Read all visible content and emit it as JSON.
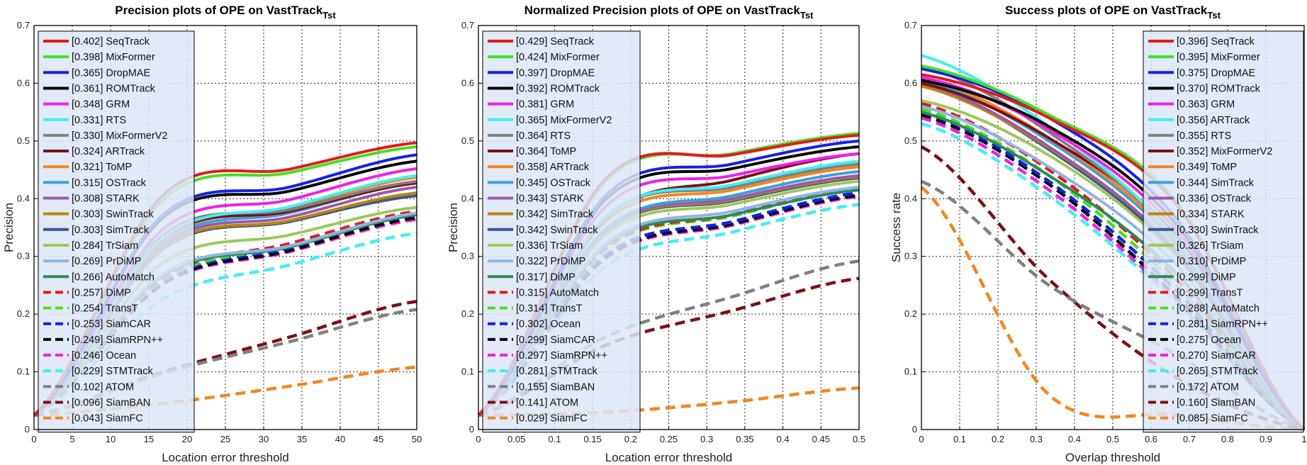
{
  "chart_data": [
    {
      "type": "line",
      "title": "Precision plots of OPE on VastTrack",
      "title_sub": "Tst",
      "xlabel": "Location error threshold",
      "ylabel": "Precision",
      "xlim": [
        0,
        50
      ],
      "ylim": [
        0,
        0.7
      ],
      "xticks": [
        "0",
        "5",
        "10",
        "15",
        "20",
        "25",
        "30",
        "35",
        "40",
        "45",
        "50"
      ],
      "yticks": [
        "0",
        "0.1",
        "0.2",
        "0.3",
        "0.4",
        "0.5",
        "0.6",
        "0.7"
      ],
      "grid": true,
      "legend_position": "top-left",
      "series": [
        {
          "name": "[0.402] SeqTrack",
          "color": "#e41a1c",
          "dash": false,
          "values": [
            0.025,
            0.404,
            0.451,
            0.497
          ]
        },
        {
          "name": "[0.398] MixFormer",
          "color": "#44e01f",
          "dash": false,
          "values": [
            0.025,
            0.396,
            0.445,
            0.49
          ]
        },
        {
          "name": "[0.365] DropMAE",
          "color": "#1520e8",
          "dash": false,
          "values": [
            0.025,
            0.37,
            0.42,
            0.476
          ]
        },
        {
          "name": "[0.361] ROMTrack",
          "color": "#000000",
          "dash": false,
          "values": [
            0.025,
            0.365,
            0.413,
            0.465
          ]
        },
        {
          "name": "[0.348] GRM",
          "color": "#f21ee8",
          "dash": false,
          "values": [
            0.025,
            0.345,
            0.398,
            0.452
          ]
        },
        {
          "name": "[0.331] RTS",
          "color": "#41f0f0",
          "dash": false,
          "values": [
            0.025,
            0.33,
            0.386,
            0.44
          ]
        },
        {
          "name": "[0.330] MixFormerV2",
          "color": "#808080",
          "dash": false,
          "values": [
            0.025,
            0.335,
            0.381,
            0.43
          ]
        },
        {
          "name": "[0.324] ARTrack",
          "color": "#7d1015",
          "dash": false,
          "values": [
            0.025,
            0.329,
            0.378,
            0.427
          ]
        },
        {
          "name": "[0.321] ToMP",
          "color": "#f5851f",
          "dash": false,
          "values": [
            0.025,
            0.326,
            0.383,
            0.437
          ]
        },
        {
          "name": "[0.315] OSTrack",
          "color": "#3e9fdc",
          "dash": false,
          "values": [
            0.025,
            0.322,
            0.375,
            0.428
          ]
        },
        {
          "name": "[0.308] STARK",
          "color": "#9a5aa8",
          "dash": false,
          "values": [
            0.025,
            0.318,
            0.368,
            0.42
          ]
        },
        {
          "name": "[0.303] SwinTrack",
          "color": "#b8860b",
          "dash": false,
          "values": [
            0.025,
            0.313,
            0.362,
            0.41
          ]
        },
        {
          "name": "[0.303] SimTrack",
          "color": "#3a5595",
          "dash": false,
          "values": [
            0.025,
            0.311,
            0.36,
            0.405
          ]
        },
        {
          "name": "[0.284] TrSiam",
          "color": "#9bc95a",
          "dash": false,
          "values": [
            0.025,
            0.287,
            0.337,
            0.385
          ]
        },
        {
          "name": "[0.269] PrDiMP",
          "color": "#8fb4e8",
          "dash": false,
          "values": [
            0.025,
            0.268,
            0.318,
            0.375
          ]
        },
        {
          "name": "[0.266] AutoMatch",
          "color": "#2e8b57",
          "dash": false,
          "values": [
            0.025,
            0.265,
            0.316,
            0.372
          ]
        },
        {
          "name": "[0.257] DiMP",
          "color": "#e41a1c",
          "dash": true,
          "values": [
            0.025,
            0.262,
            0.322,
            0.378
          ]
        },
        {
          "name": "[0.254] TransT",
          "color": "#44e01f",
          "dash": true,
          "values": [
            0.025,
            0.258,
            0.318,
            0.375
          ]
        },
        {
          "name": "[0.253] SiamCAR",
          "color": "#1520e8",
          "dash": true,
          "values": [
            0.025,
            0.255,
            0.315,
            0.372
          ]
        },
        {
          "name": "[0.249] SiamRPN++",
          "color": "#000000",
          "dash": true,
          "values": [
            0.025,
            0.252,
            0.31,
            0.367
          ]
        },
        {
          "name": "[0.246] Ocean",
          "color": "#f21ee8",
          "dash": true,
          "values": [
            0.025,
            0.25,
            0.308,
            0.364
          ]
        },
        {
          "name": "[0.229] STMTrack",
          "color": "#41f0f0",
          "dash": true,
          "values": [
            0.025,
            0.225,
            0.285,
            0.34
          ]
        },
        {
          "name": "[0.102] ATOM",
          "color": "#808080",
          "dash": true,
          "values": [
            0.025,
            0.097,
            0.152,
            0.208
          ]
        },
        {
          "name": "[0.096] SiamBAN",
          "color": "#7d1015",
          "dash": true,
          "values": [
            0.025,
            0.099,
            0.16,
            0.222
          ]
        },
        {
          "name": "[0.043] SiamFC",
          "color": "#f5851f",
          "dash": true,
          "values": [
            0.025,
            0.045,
            0.075,
            0.108
          ]
        }
      ]
    },
    {
      "type": "line",
      "title": "Normalized Precision plots of OPE on VastTrack",
      "title_sub": "Tst",
      "xlabel": "Location error threshold",
      "ylabel": "Precision",
      "xlim": [
        0,
        0.5
      ],
      "ylim": [
        0,
        0.7
      ],
      "xticks": [
        "0",
        "0.05",
        "0.1",
        "0.15",
        "0.2",
        "0.25",
        "0.3",
        "0.35",
        "0.4",
        "0.45",
        "0.5"
      ],
      "yticks": [
        "0",
        "0.1",
        "0.2",
        "0.3",
        "0.4",
        "0.5",
        "0.6",
        "0.7"
      ],
      "grid": true,
      "legend_position": "top-left",
      "series": [
        {
          "name": "[0.429] SeqTrack",
          "color": "#e41a1c",
          "dash": false,
          "values": [
            0.025,
            0.434,
            0.476,
            0.51
          ]
        },
        {
          "name": "[0.424] MixFormer",
          "color": "#44e01f",
          "dash": false,
          "values": [
            0.025,
            0.43,
            0.478,
            0.513
          ]
        },
        {
          "name": "[0.397] DropMAE",
          "color": "#1520e8",
          "dash": false,
          "values": [
            0.025,
            0.405,
            0.46,
            0.5
          ]
        },
        {
          "name": "[0.392] ROMTrack",
          "color": "#000000",
          "dash": false,
          "values": [
            0.025,
            0.398,
            0.452,
            0.49
          ]
        },
        {
          "name": "[0.381] GRM",
          "color": "#f21ee8",
          "dash": false,
          "values": [
            0.025,
            0.386,
            0.44,
            0.478
          ]
        },
        {
          "name": "[0.365] MixFormerV2",
          "color": "#41f0f0",
          "dash": false,
          "values": [
            0.025,
            0.368,
            0.424,
            0.465
          ]
        },
        {
          "name": "[0.364] RTS",
          "color": "#808080",
          "dash": false,
          "values": [
            0.025,
            0.367,
            0.42,
            0.46
          ]
        },
        {
          "name": "[0.364] ToMP",
          "color": "#7d1015",
          "dash": false,
          "values": [
            0.025,
            0.366,
            0.432,
            0.478
          ]
        },
        {
          "name": "[0.358] ARTrack",
          "color": "#f5851f",
          "dash": false,
          "values": [
            0.025,
            0.36,
            0.415,
            0.455
          ]
        },
        {
          "name": "[0.345] OSTrack",
          "color": "#3e9fdc",
          "dash": false,
          "values": [
            0.025,
            0.347,
            0.405,
            0.447
          ]
        },
        {
          "name": "[0.343] STARK",
          "color": "#9a5aa8",
          "dash": false,
          "values": [
            0.025,
            0.345,
            0.4,
            0.44
          ]
        },
        {
          "name": "[0.342] SimTrack",
          "color": "#b8860b",
          "dash": false,
          "values": [
            0.025,
            0.343,
            0.398,
            0.438
          ]
        },
        {
          "name": "[0.342] SwinTrack",
          "color": "#3a5595",
          "dash": false,
          "values": [
            0.025,
            0.342,
            0.396,
            0.436
          ]
        },
        {
          "name": "[0.336] TrSiam",
          "color": "#9bc95a",
          "dash": false,
          "values": [
            0.025,
            0.336,
            0.39,
            0.43
          ]
        },
        {
          "name": "[0.322] PrDiMP",
          "color": "#8fb4e8",
          "dash": false,
          "values": [
            0.025,
            0.322,
            0.378,
            0.42
          ]
        },
        {
          "name": "[0.317] DiMP",
          "color": "#2e8b57",
          "dash": false,
          "values": [
            0.025,
            0.318,
            0.372,
            0.415
          ]
        },
        {
          "name": "[0.315] AutoMatch",
          "color": "#e41a1c",
          "dash": true,
          "values": [
            0.025,
            0.314,
            0.372,
            0.418
          ]
        },
        {
          "name": "[0.314] TransT",
          "color": "#44e01f",
          "dash": true,
          "values": [
            0.025,
            0.312,
            0.37,
            0.416
          ]
        },
        {
          "name": "[0.302] Ocean",
          "color": "#1520e8",
          "dash": true,
          "values": [
            0.025,
            0.302,
            0.36,
            0.41
          ]
        },
        {
          "name": "[0.299] SiamCAR",
          "color": "#000000",
          "dash": true,
          "values": [
            0.025,
            0.298,
            0.356,
            0.406
          ]
        },
        {
          "name": "[0.297] SiamRPN++",
          "color": "#f21ee8",
          "dash": true,
          "values": [
            0.025,
            0.296,
            0.354,
            0.404
          ]
        },
        {
          "name": "[0.281] STMTrack",
          "color": "#41f0f0",
          "dash": true,
          "values": [
            0.025,
            0.282,
            0.342,
            0.39
          ]
        },
        {
          "name": "[0.155] SiamBAN",
          "color": "#808080",
          "dash": true,
          "values": [
            0.025,
            0.16,
            0.23,
            0.292
          ]
        },
        {
          "name": "[0.141] ATOM",
          "color": "#7d1015",
          "dash": true,
          "values": [
            0.025,
            0.146,
            0.206,
            0.262
          ]
        },
        {
          "name": "[0.029] SiamFC",
          "color": "#f5851f",
          "dash": true,
          "values": [
            0.025,
            0.03,
            0.048,
            0.072
          ]
        }
      ]
    },
    {
      "type": "line",
      "title": "Success plots of OPE on VastTrack",
      "title_sub": "Tst",
      "xlabel": "Overlap threshold",
      "ylabel": "Success rate",
      "xlim": [
        0,
        1
      ],
      "ylim": [
        0,
        0.7
      ],
      "xticks": [
        "0",
        "0.1",
        "0.2",
        "0.3",
        "0.4",
        "0.5",
        "0.6",
        "0.7",
        "0.8",
        "0.9",
        "1"
      ],
      "yticks": [
        "0",
        "0.1",
        "0.2",
        "0.3",
        "0.4",
        "0.5",
        "0.6",
        "0.7"
      ],
      "grid": true,
      "legend_position": "top-right",
      "series": [
        {
          "name": "[0.396] SeqTrack",
          "color": "#e41a1c",
          "dash": false,
          "values": [
            0.615,
            0.54,
            0.39,
            0.0
          ]
        },
        {
          "name": "[0.395] MixFormer",
          "color": "#44e01f",
          "dash": false,
          "values": [
            0.63,
            0.545,
            0.395,
            0.0
          ]
        },
        {
          "name": "[0.375] DropMAE",
          "color": "#1520e8",
          "dash": false,
          "values": [
            0.625,
            0.54,
            0.365,
            0.0
          ]
        },
        {
          "name": "[0.370] ROMTrack",
          "color": "#000000",
          "dash": false,
          "values": [
            0.605,
            0.525,
            0.355,
            0.0
          ]
        },
        {
          "name": "[0.363] GRM",
          "color": "#f21ee8",
          "dash": false,
          "values": [
            0.61,
            0.52,
            0.345,
            0.0
          ]
        },
        {
          "name": "[0.356] ARTrack",
          "color": "#41f0f0",
          "dash": false,
          "values": [
            0.648,
            0.525,
            0.33,
            0.0
          ]
        },
        {
          "name": "[0.355] RTS",
          "color": "#808080",
          "dash": false,
          "values": [
            0.63,
            0.515,
            0.33,
            0.0
          ]
        },
        {
          "name": "[0.352] MixFormerV2",
          "color": "#7d1015",
          "dash": false,
          "values": [
            0.6,
            0.505,
            0.335,
            0.0
          ]
        },
        {
          "name": "[0.349] ToMP",
          "color": "#f5851f",
          "dash": false,
          "values": [
            0.61,
            0.505,
            0.325,
            0.0
          ]
        },
        {
          "name": "[0.344] SimTrack",
          "color": "#3e9fdc",
          "dash": false,
          "values": [
            0.605,
            0.5,
            0.32,
            0.0
          ]
        },
        {
          "name": "[0.336] OSTrack",
          "color": "#9a5aa8",
          "dash": false,
          "values": [
            0.6,
            0.49,
            0.31,
            0.0
          ]
        },
        {
          "name": "[0.334] STARK",
          "color": "#b8860b",
          "dash": false,
          "values": [
            0.595,
            0.488,
            0.31,
            0.0
          ]
        },
        {
          "name": "[0.330] SwinTrack",
          "color": "#3a5595",
          "dash": false,
          "values": [
            0.6,
            0.485,
            0.305,
            0.0
          ]
        },
        {
          "name": "[0.326] TrSiam",
          "color": "#9bc95a",
          "dash": false,
          "values": [
            0.57,
            0.475,
            0.3,
            0.0
          ]
        },
        {
          "name": "[0.310] PrDiMP",
          "color": "#8fb4e8",
          "dash": false,
          "values": [
            0.56,
            0.455,
            0.285,
            0.0
          ]
        },
        {
          "name": "[0.299] DiMP",
          "color": "#2e8b57",
          "dash": false,
          "values": [
            0.55,
            0.44,
            0.27,
            0.0
          ]
        },
        {
          "name": "[0.299] TransT",
          "color": "#e41a1c",
          "dash": true,
          "values": [
            0.565,
            0.45,
            0.26,
            0.0
          ]
        },
        {
          "name": "[0.288] AutoMatch",
          "color": "#44e01f",
          "dash": true,
          "values": [
            0.555,
            0.44,
            0.25,
            0.0
          ]
        },
        {
          "name": "[0.281] SiamRPN++",
          "color": "#1520e8",
          "dash": true,
          "values": [
            0.55,
            0.43,
            0.24,
            0.0
          ]
        },
        {
          "name": "[0.275] Ocean",
          "color": "#000000",
          "dash": true,
          "values": [
            0.545,
            0.425,
            0.23,
            0.0
          ]
        },
        {
          "name": "[0.270] SiamCAR",
          "color": "#f21ee8",
          "dash": true,
          "values": [
            0.54,
            0.415,
            0.225,
            0.0
          ]
        },
        {
          "name": "[0.265] STMTrack",
          "color": "#41f0f0",
          "dash": true,
          "values": [
            0.53,
            0.405,
            0.22,
            0.0
          ]
        },
        {
          "name": "[0.172] ATOM",
          "color": "#808080",
          "dash": true,
          "values": [
            0.43,
            0.25,
            0.13,
            0.0
          ]
        },
        {
          "name": "[0.160] SiamBAN",
          "color": "#7d1015",
          "dash": true,
          "values": [
            0.49,
            0.26,
            0.09,
            0.0
          ]
        },
        {
          "name": "[0.085] SiamFC",
          "color": "#f5851f",
          "dash": true,
          "values": [
            0.42,
            0.06,
            0.025,
            0.0
          ]
        }
      ]
    }
  ]
}
